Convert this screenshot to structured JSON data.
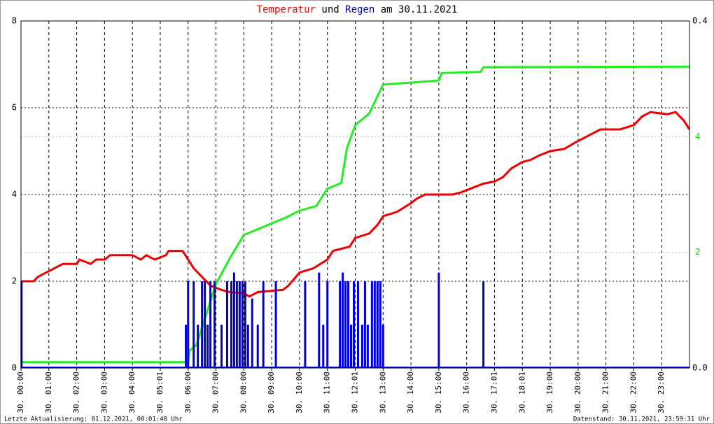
{
  "chart_data": {
    "type": "line",
    "title_parts": [
      {
        "text": "Temperatur",
        "color": "#ff0000"
      },
      {
        "text": "und",
        "color": "#000000"
      },
      {
        "text": "Regen",
        "color": "#0000aa"
      },
      {
        "text": "am 30.11.2021",
        "color": "#000000"
      }
    ],
    "footer_left": "Letzte Aktualisierung: 01.12.2021, 00:01:40 Uhr",
    "footer_right": "Datenstand: 30.11.2021, 23:59:31 Uhr",
    "xlim": [
      0,
      24
    ],
    "xticks": [
      {
        "value": 0,
        "label": "30. 00:00"
      },
      {
        "value": 1,
        "label": "30. 01:00"
      },
      {
        "value": 2,
        "label": "30. 02:00"
      },
      {
        "value": 3,
        "label": "30. 03:00"
      },
      {
        "value": 4,
        "label": "30. 04:00"
      },
      {
        "value": 5,
        "label": "30. 05:01"
      },
      {
        "value": 6,
        "label": "30. 06:00"
      },
      {
        "value": 7,
        "label": "30. 07:00"
      },
      {
        "value": 8,
        "label": "30. 08:00"
      },
      {
        "value": 9,
        "label": "30. 09:00"
      },
      {
        "value": 10,
        "label": "30. 10:00"
      },
      {
        "value": 11,
        "label": "30. 11:00"
      },
      {
        "value": 12,
        "label": "30. 12:01"
      },
      {
        "value": 13,
        "label": "30. 13:00"
      },
      {
        "value": 14,
        "label": "30. 14:00"
      },
      {
        "value": 15,
        "label": "30. 15:00"
      },
      {
        "value": 16,
        "label": "30. 16:00"
      },
      {
        "value": 17,
        "label": "30. 17:01"
      },
      {
        "value": 18,
        "label": "30. 18:01"
      },
      {
        "value": 19,
        "label": "30. 19:00"
      },
      {
        "value": 20,
        "label": "30. 20:00"
      },
      {
        "value": 21,
        "label": "30. 21:00"
      },
      {
        "value": 22,
        "label": "30. 22:00"
      },
      {
        "value": 23,
        "label": "30. 23:00"
      }
    ],
    "ylim": [
      0,
      8
    ],
    "yticks": [
      0,
      2,
      4,
      6,
      8
    ],
    "y2lim": [
      0,
      6
    ],
    "y2ticks": [
      2,
      4
    ],
    "y2color": "#00dd00",
    "y3lim": [
      0,
      0.4
    ],
    "y3ticks": [
      {
        "value": 0,
        "label": "0.0"
      },
      {
        "value": 0.4,
        "label": "0.4"
      }
    ],
    "grid": true,
    "series": [
      {
        "color": "#ee0000",
        "axis": "y",
        "kind": "line",
        "x": [
          0,
          0.45,
          0.6,
          0.9,
          1.2,
          1.5,
          2.0,
          2.1,
          2.5,
          2.7,
          3.0,
          3.2,
          4.0,
          4.3,
          4.5,
          4.8,
          5.2,
          5.3,
          5.8,
          6.0,
          6.2,
          6.5,
          6.8,
          7.2,
          7.5,
          8.0,
          8.2,
          8.5,
          9.0,
          9.4,
          9.6,
          10.0,
          10.5,
          11.0,
          11.2,
          11.5,
          11.8,
          12.0,
          12.5,
          12.8,
          13.0,
          13.5,
          14.0,
          14.2,
          14.5,
          15.5,
          15.8,
          16.2,
          16.6,
          17.0,
          17.3,
          17.6,
          18.0,
          18.3,
          18.6,
          19.0,
          19.5,
          19.9,
          20.2,
          20.5,
          20.8,
          21.5,
          22.0,
          22.3,
          22.6,
          23.2,
          23.5,
          23.8,
          24.0
        ],
        "values": [
          2.0,
          2.0,
          2.1,
          2.2,
          2.3,
          2.4,
          2.4,
          2.5,
          2.4,
          2.5,
          2.5,
          2.6,
          2.6,
          2.5,
          2.6,
          2.5,
          2.6,
          2.7,
          2.7,
          2.5,
          2.3,
          2.1,
          1.9,
          1.8,
          1.75,
          1.72,
          1.65,
          1.75,
          1.78,
          1.8,
          1.9,
          2.2,
          2.3,
          2.5,
          2.7,
          2.75,
          2.8,
          3.0,
          3.1,
          3.3,
          3.5,
          3.6,
          3.8,
          3.9,
          4.0,
          4.0,
          4.05,
          4.15,
          4.25,
          4.3,
          4.4,
          4.6,
          4.75,
          4.8,
          4.9,
          5.0,
          5.05,
          5.2,
          5.3,
          5.4,
          5.5,
          5.5,
          5.6,
          5.8,
          5.9,
          5.85,
          5.9,
          5.7,
          5.5
        ]
      },
      {
        "color": "#22ee22",
        "axis": "y2",
        "kind": "line",
        "x": [
          0,
          6.0,
          6.05,
          6.3,
          7.0,
          7.5,
          8.0,
          8.5,
          9.0,
          9.5,
          10.0,
          10.6,
          11.0,
          11.5,
          11.7,
          12.0,
          12.5,
          13.0,
          15.0,
          15.1,
          16.5,
          16.6,
          24
        ],
        "values": [
          0.1,
          0.1,
          0.3,
          0.4,
          1.45,
          1.9,
          2.3,
          2.4,
          2.5,
          2.6,
          2.72,
          2.8,
          3.1,
          3.2,
          3.8,
          4.2,
          4.4,
          4.9,
          4.97,
          5.1,
          5.12,
          5.2,
          5.21
        ]
      },
      {
        "color": "#0000dd",
        "axis": "y3",
        "kind": "bar",
        "x": [
          0.02,
          5.92,
          6.0,
          6.2,
          6.35,
          6.5,
          6.6,
          6.7,
          6.8,
          6.95,
          7.2,
          7.4,
          7.55,
          7.65,
          7.75,
          7.85,
          7.95,
          8.05,
          8.15,
          8.3,
          8.5,
          8.7,
          9.15,
          10.2,
          10.7,
          10.85,
          11.0,
          11.45,
          11.55,
          11.65,
          11.75,
          11.85,
          11.95,
          12.1,
          12.25,
          12.35,
          12.45,
          12.6,
          12.7,
          12.8,
          12.9,
          13.0,
          15.0,
          16.6
        ],
        "values": [
          0.1,
          0.05,
          0.1,
          0.1,
          0.05,
          0.1,
          0.1,
          0.05,
          0.1,
          0.1,
          0.05,
          0.1,
          0.1,
          0.11,
          0.1,
          0.1,
          0.1,
          0.1,
          0.05,
          0.08,
          0.05,
          0.1,
          0.1,
          0.1,
          0.11,
          0.05,
          0.1,
          0.1,
          0.11,
          0.1,
          0.1,
          0.05,
          0.1,
          0.1,
          0.05,
          0.1,
          0.05,
          0.1,
          0.1,
          0.1,
          0.1,
          0.05,
          0.11,
          0.1
        ]
      }
    ]
  }
}
